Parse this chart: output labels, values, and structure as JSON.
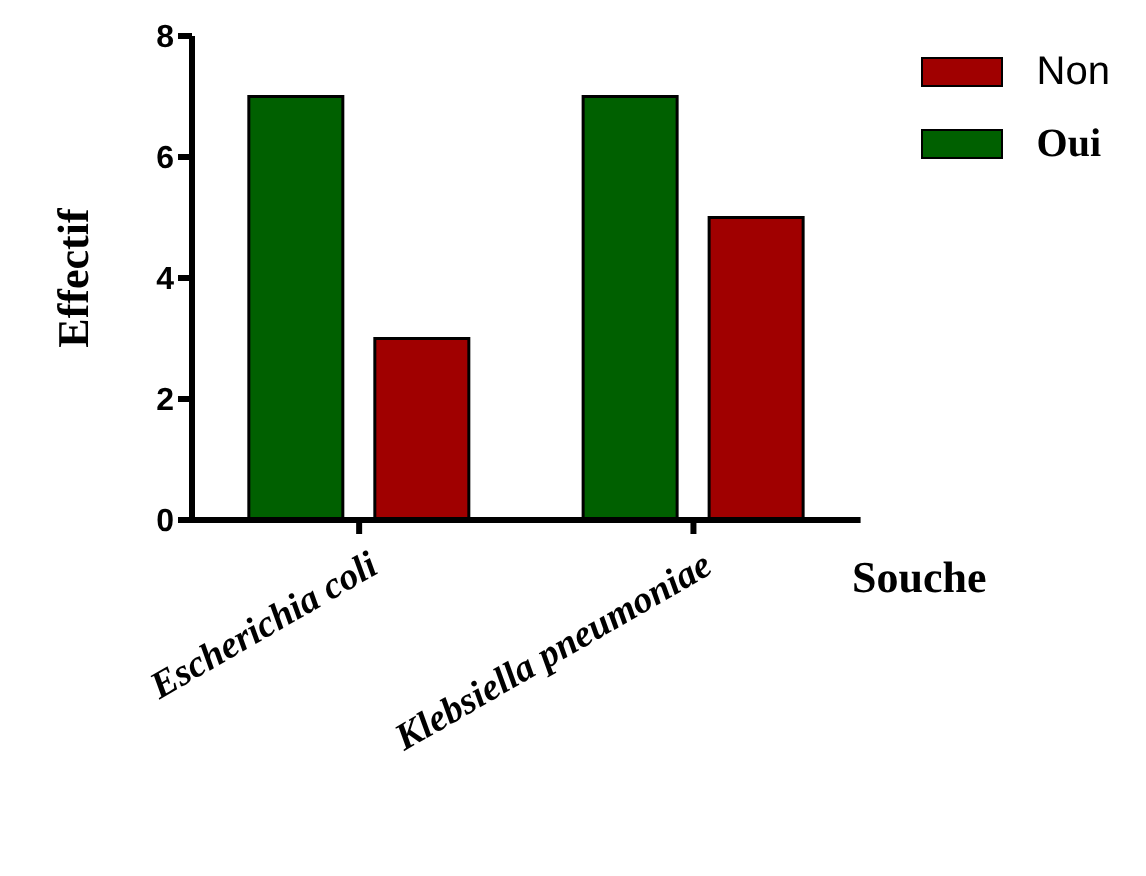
{
  "chart_data": {
    "type": "bar",
    "xlabel": "Souche",
    "ylabel": "Effectif",
    "categories": [
      "Escherichia coli",
      "Klebsiella pneumoniae"
    ],
    "series": [
      {
        "name": "Oui",
        "color": "#006000",
        "values": [
          7,
          7
        ]
      },
      {
        "name": "Non",
        "color": "#a00000",
        "values": [
          3,
          5
        ]
      }
    ],
    "ylim": [
      0,
      8
    ],
    "yticks": [
      0,
      2,
      4,
      6,
      8
    ],
    "grid": false,
    "legend": "top right"
  }
}
